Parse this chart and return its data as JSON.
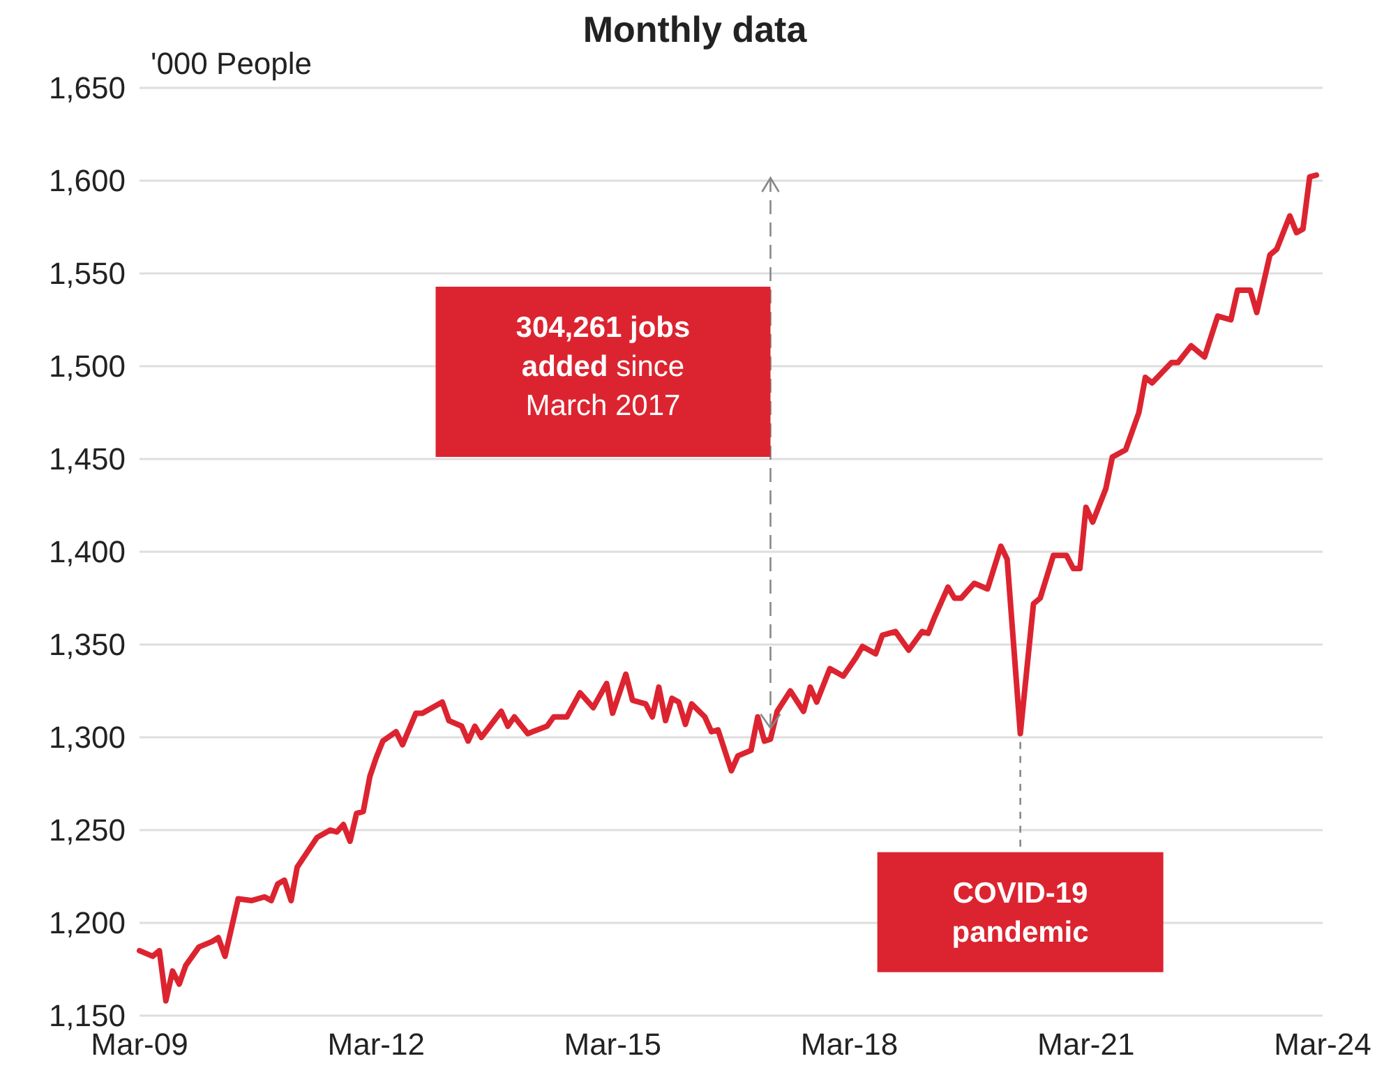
{
  "chart_data": {
    "type": "line",
    "title": "Monthly data",
    "ylabel": "'000 People",
    "xlim": [
      "2009-03",
      "2024-03"
    ],
    "xticks": [
      {
        "value": "2009-03",
        "label": "Mar-09"
      },
      {
        "value": "2012-03",
        "label": "Mar-12"
      },
      {
        "value": "2015-03",
        "label": "Mar-15"
      },
      {
        "value": "2018-03",
        "label": "Mar-18"
      },
      {
        "value": "2021-03",
        "label": "Mar-21"
      },
      {
        "value": "2024-03",
        "label": "Mar-24"
      }
    ],
    "ylim": [
      1150,
      1650
    ],
    "yticks": [
      {
        "value": 1150,
        "label": "1,150"
      },
      {
        "value": 1200,
        "label": "1,200"
      },
      {
        "value": 1250,
        "label": "1,250"
      },
      {
        "value": 1300,
        "label": "1,300"
      },
      {
        "value": 1350,
        "label": "1,350"
      },
      {
        "value": 1400,
        "label": "1,400"
      },
      {
        "value": 1450,
        "label": "1,450"
      },
      {
        "value": 1500,
        "label": "1,500"
      },
      {
        "value": 1550,
        "label": "1,550"
      },
      {
        "value": 1600,
        "label": "1,600"
      },
      {
        "value": 1650,
        "label": "1,650"
      }
    ],
    "grid": "y",
    "marker": "none",
    "line_style": "solid",
    "x": [
      "2009-03",
      "2009-05",
      "2009-06",
      "2009-07",
      "2009-08",
      "2009-09",
      "2009-10",
      "2009-12",
      "2010-02",
      "2010-03",
      "2010-04",
      "2010-06",
      "2010-08",
      "2010-10",
      "2010-11",
      "2010-12",
      "2011-01",
      "2011-02",
      "2011-03",
      "2011-06",
      "2011-08",
      "2011-09",
      "2011-10",
      "2011-11",
      "2011-12",
      "2012-01",
      "2012-02",
      "2012-03",
      "2012-04",
      "2012-06",
      "2012-07",
      "2012-09",
      "2012-10",
      "2013-01",
      "2013-02",
      "2013-04",
      "2013-05",
      "2013-06",
      "2013-07",
      "2013-10",
      "2013-11",
      "2013-12",
      "2014-02",
      "2014-05",
      "2014-06",
      "2014-08",
      "2014-10",
      "2014-12",
      "2015-02",
      "2015-03",
      "2015-05",
      "2015-06",
      "2015-08",
      "2015-09",
      "2015-10",
      "2015-11",
      "2015-12",
      "2016-01",
      "2016-02",
      "2016-03",
      "2016-05",
      "2016-06",
      "2016-07",
      "2016-09",
      "2016-10",
      "2016-12",
      "2017-01",
      "2017-02",
      "2017-03",
      "2017-04",
      "2017-06",
      "2017-08",
      "2017-09",
      "2017-10",
      "2017-12",
      "2018-02",
      "2018-04",
      "2018-05",
      "2018-07",
      "2018-08",
      "2018-10",
      "2018-12",
      "2019-02",
      "2019-03",
      "2019-04",
      "2019-06",
      "2019-07",
      "2019-08",
      "2019-10",
      "2019-12",
      "2020-02",
      "2020-03",
      "2020-05",
      "2020-07",
      "2020-08",
      "2020-10",
      "2020-12",
      "2021-01",
      "2021-02",
      "2021-03",
      "2021-04",
      "2021-06",
      "2021-07",
      "2021-09",
      "2021-11",
      "2021-12",
      "2022-01",
      "2022-04",
      "2022-05",
      "2022-07",
      "2022-09",
      "2022-11",
      "2023-01",
      "2023-02",
      "2023-04",
      "2023-05",
      "2023-07",
      "2023-08",
      "2023-10",
      "2023-11",
      "2023-12",
      "2024-01",
      "2024-02"
    ],
    "series": [
      {
        "color": "#dc2430",
        "values": [
          1185,
          1182,
          1185,
          1158,
          1174,
          1167,
          1177,
          1187,
          1190,
          1192,
          1182,
          1213,
          1212,
          1214,
          1212,
          1221,
          1223,
          1212,
          1230,
          1246,
          1250,
          1249,
          1253,
          1244,
          1259,
          1260,
          1279,
          1289,
          1298,
          1303,
          1296,
          1313,
          1313,
          1319,
          1309,
          1306,
          1298,
          1306,
          1300,
          1314,
          1306,
          1311,
          1302,
          1306,
          1311,
          1311,
          1324,
          1316,
          1329,
          1313,
          1334,
          1320,
          1318,
          1311,
          1327,
          1309,
          1321,
          1319,
          1307,
          1318,
          1311,
          1303,
          1304,
          1282,
          1290,
          1293,
          1311,
          1298,
          1299,
          1314,
          1325,
          1314,
          1327,
          1319,
          1337,
          1333,
          1343,
          1349,
          1345,
          1355,
          1357,
          1347,
          1357,
          1356,
          1365,
          1381,
          1375,
          1375,
          1383,
          1380,
          1403,
          1396,
          1302,
          1372,
          1375,
          1398,
          1398,
          1391,
          1391,
          1424,
          1416,
          1434,
          1451,
          1455,
          1475,
          1494,
          1491,
          1502,
          1502,
          1511,
          1505,
          1527,
          1525,
          1541,
          1541,
          1529,
          1560,
          1563,
          1581,
          1572,
          1574,
          1602,
          1603
        ]
      }
    ],
    "ref_lines": [
      {
        "axis": "x",
        "value": "2017-03",
        "label": "304,261 jobs added since March 2017",
        "color": "#888888",
        "line_style": "dashed"
      }
    ],
    "annotations": [
      {
        "text": "COVID-19 pandemic",
        "x": "2020-05",
        "y": 1302
      }
    ]
  }
}
